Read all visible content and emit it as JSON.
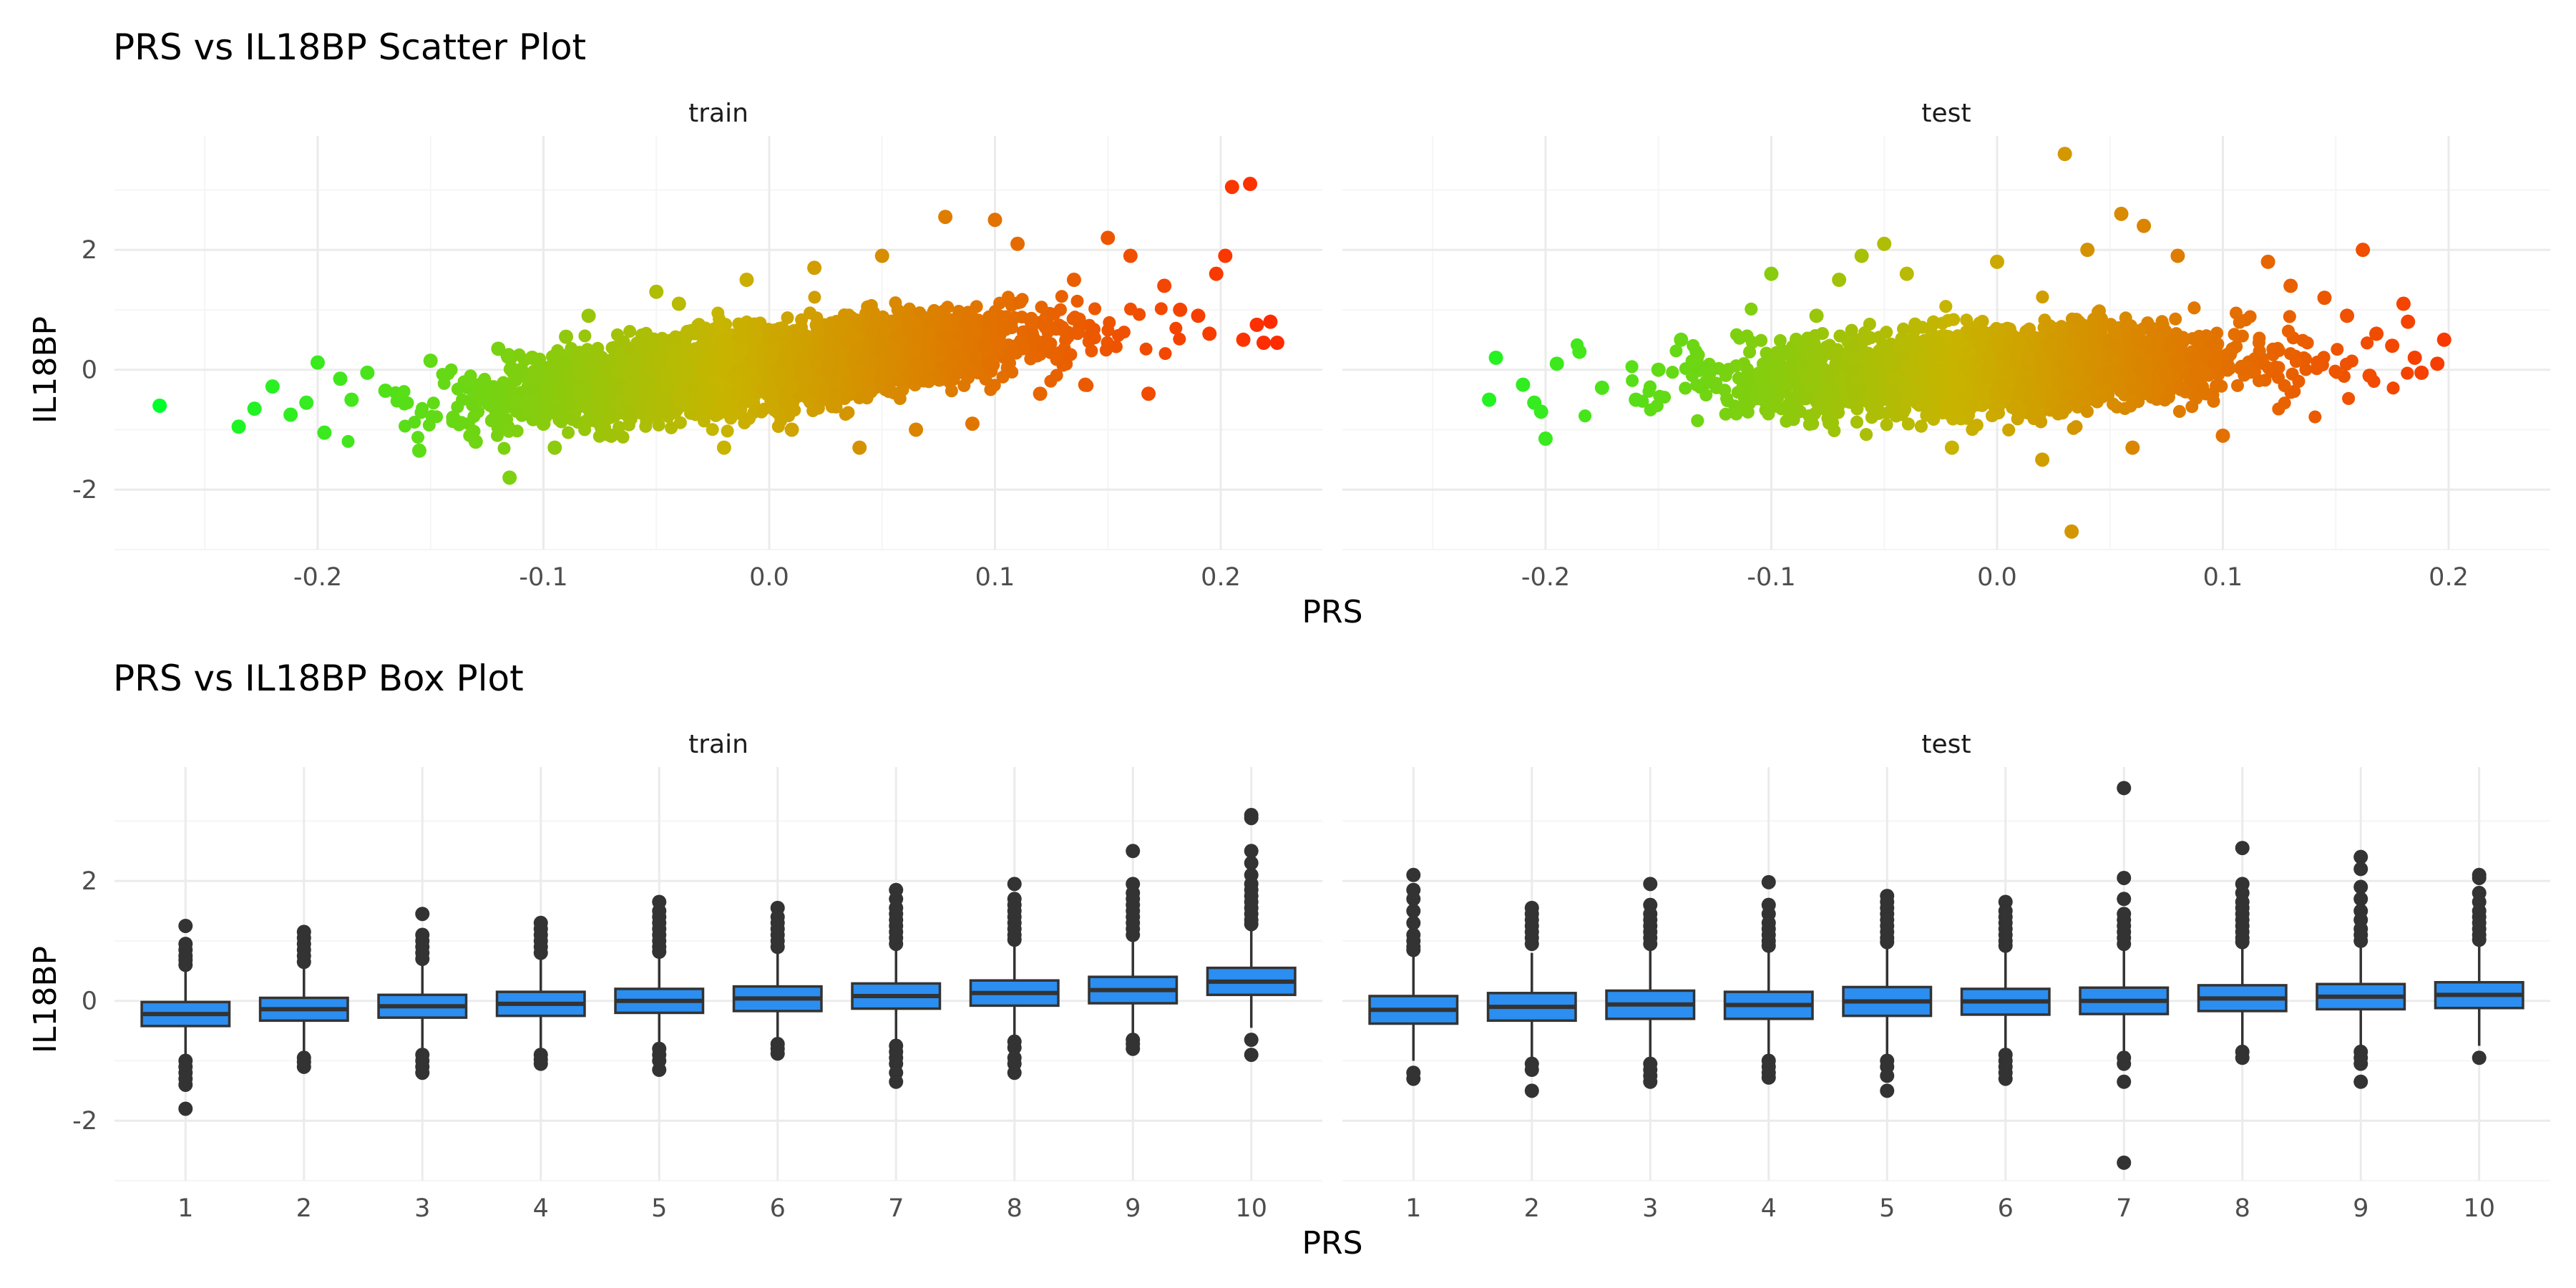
{
  "figure": {
    "background": "#ffffff",
    "gridMajorColor": "#ebebeb",
    "gridMinorColor": "#f5f5f5"
  },
  "chart_data": [
    {
      "type": "scatter",
      "title": "PRS vs IL18BP Scatter Plot",
      "xlabel": "PRS",
      "ylabel": "IL18BP",
      "facets": [
        "train",
        "test"
      ],
      "xlim": [
        -0.29,
        0.245
      ],
      "ylim": [
        -3.0,
        3.9
      ],
      "xticks": [
        -0.2,
        -0.1,
        0.0,
        0.1,
        0.2
      ],
      "xtick_labels": [
        "-0.2",
        "-0.1",
        "0.0",
        "0.1",
        "0.2"
      ],
      "yticks": [
        -2,
        0,
        2
      ],
      "ytick_labels": [
        "-2",
        "0",
        "2"
      ],
      "color_scale": {
        "low": "#00ff2a",
        "mid": "#c8b400",
        "high": "#ff2800",
        "variable": "PRS"
      },
      "series": [
        {
          "name": "train",
          "points": [
            [
              -0.27,
              -0.6
            ],
            [
              -0.235,
              -0.95
            ],
            [
              -0.228,
              -0.65
            ],
            [
              -0.22,
              -0.28
            ],
            [
              -0.212,
              -0.75
            ],
            [
              -0.205,
              -0.55
            ],
            [
              -0.2,
              0.12
            ],
            [
              -0.197,
              -1.05
            ],
            [
              -0.19,
              -0.15
            ],
            [
              -0.185,
              -0.5
            ],
            [
              -0.178,
              -0.05
            ],
            [
              -0.17,
              -0.35
            ],
            [
              -0.155,
              -1.35
            ],
            [
              -0.15,
              0.15
            ],
            [
              -0.14,
              -0.8
            ],
            [
              -0.13,
              -1.2
            ],
            [
              -0.12,
              0.35
            ],
            [
              -0.115,
              -1.8
            ],
            [
              -0.105,
              0.2
            ],
            [
              -0.1,
              -0.9
            ],
            [
              -0.095,
              -1.3
            ],
            [
              -0.09,
              0.55
            ],
            [
              -0.08,
              0.9
            ],
            [
              -0.07,
              -1.1
            ],
            [
              -0.05,
              1.3
            ],
            [
              -0.04,
              1.1
            ],
            [
              -0.02,
              -1.3
            ],
            [
              -0.01,
              1.5
            ],
            [
              0.01,
              -1.0
            ],
            [
              0.02,
              1.7
            ],
            [
              0.04,
              -1.3
            ],
            [
              0.05,
              1.9
            ],
            [
              0.065,
              -1.0
            ],
            [
              0.078,
              2.55
            ],
            [
              0.09,
              -0.9
            ],
            [
              0.1,
              2.5
            ],
            [
              0.11,
              2.1
            ],
            [
              0.12,
              -0.4
            ],
            [
              0.135,
              1.5
            ],
            [
              0.14,
              -0.25
            ],
            [
              0.15,
              2.2
            ],
            [
              0.16,
              1.9
            ],
            [
              0.168,
              -0.4
            ],
            [
              0.175,
              1.4
            ],
            [
              0.182,
              1.0
            ],
            [
              0.19,
              0.9
            ],
            [
              0.195,
              0.6
            ],
            [
              0.198,
              1.6
            ],
            [
              0.202,
              1.9
            ],
            [
              0.205,
              3.05
            ],
            [
              0.21,
              0.5
            ],
            [
              0.213,
              3.1
            ],
            [
              0.216,
              0.75
            ],
            [
              0.219,
              0.45
            ],
            [
              0.222,
              0.8
            ],
            [
              0.225,
              0.45
            ]
          ],
          "trend": {
            "slope": 4.2,
            "intercept": 0.05,
            "spread": 0.3
          }
        },
        {
          "name": "test",
          "points": [
            [
              -0.225,
              -0.5
            ],
            [
              -0.222,
              0.2
            ],
            [
              -0.21,
              -0.25
            ],
            [
              -0.205,
              -0.55
            ],
            [
              -0.202,
              -0.7
            ],
            [
              -0.2,
              -1.15
            ],
            [
              -0.195,
              0.1
            ],
            [
              -0.185,
              0.3
            ],
            [
              -0.175,
              -0.3
            ],
            [
              -0.16,
              -0.5
            ],
            [
              -0.15,
              0.0
            ],
            [
              -0.14,
              0.5
            ],
            [
              -0.1,
              1.6
            ],
            [
              -0.08,
              0.9
            ],
            [
              -0.07,
              1.5
            ],
            [
              -0.06,
              1.9
            ],
            [
              -0.05,
              2.1
            ],
            [
              -0.04,
              1.6
            ],
            [
              -0.02,
              -1.3
            ],
            [
              0.0,
              1.8
            ],
            [
              0.02,
              -1.5
            ],
            [
              0.03,
              3.6
            ],
            [
              0.033,
              -2.7
            ],
            [
              0.04,
              2.0
            ],
            [
              0.055,
              2.6
            ],
            [
              0.065,
              2.4
            ],
            [
              0.06,
              -1.3
            ],
            [
              0.08,
              1.9
            ],
            [
              0.1,
              -1.1
            ],
            [
              0.12,
              1.8
            ],
            [
              0.13,
              1.4
            ],
            [
              0.145,
              1.2
            ],
            [
              0.155,
              0.9
            ],
            [
              0.162,
              2.0
            ],
            [
              0.165,
              -0.1
            ],
            [
              0.168,
              0.6
            ],
            [
              0.175,
              0.4
            ],
            [
              0.18,
              1.1
            ],
            [
              0.182,
              0.8
            ],
            [
              0.185,
              0.2
            ],
            [
              0.188,
              -0.05
            ],
            [
              0.195,
              0.1
            ],
            [
              0.198,
              0.5
            ]
          ],
          "trend": {
            "slope": 1.5,
            "intercept": 0.0,
            "spread": 0.33
          }
        }
      ]
    },
    {
      "type": "box",
      "title": "PRS vs IL18BP Box Plot",
      "xlabel": "PRS",
      "ylabel": "IL18BP",
      "facets": [
        "train",
        "test"
      ],
      "categories": [
        "1",
        "2",
        "3",
        "4",
        "5",
        "6",
        "7",
        "8",
        "9",
        "10"
      ],
      "ylim": [
        -3.0,
        3.9
      ],
      "yticks": [
        -2,
        0,
        2
      ],
      "ytick_labels": [
        "-2",
        "0",
        "2"
      ],
      "box_fill": "#2b8ef0",
      "box_stroke": "#333333",
      "outlier_color": "#333333",
      "series": [
        {
          "name": "train",
          "boxes": [
            {
              "category": "1",
              "q1": -0.42,
              "median": -0.22,
              "q3": -0.02,
              "lower": -0.95,
              "upper": 0.5,
              "outliers": [
                1.25,
                0.95,
                0.85,
                0.75,
                0.68,
                0.6,
                -1.0,
                -1.1,
                -1.2,
                -1.3,
                -1.4,
                -1.8
              ]
            },
            {
              "category": "2",
              "q1": -0.33,
              "median": -0.14,
              "q3": 0.05,
              "lower": -0.85,
              "upper": 0.58,
              "outliers": [
                1.15,
                1.05,
                0.95,
                0.85,
                0.75,
                0.65,
                -0.95,
                -1.02,
                -1.1
              ]
            },
            {
              "category": "3",
              "q1": -0.28,
              "median": -0.09,
              "q3": 0.1,
              "lower": -0.82,
              "upper": 0.62,
              "outliers": [
                1.45,
                1.1,
                1.0,
                0.9,
                0.8,
                0.7,
                -0.9,
                -1.0,
                -1.1,
                -1.2
              ]
            },
            {
              "category": "4",
              "q1": -0.25,
              "median": -0.05,
              "q3": 0.15,
              "lower": -0.8,
              "upper": 0.7,
              "outliers": [
                1.3,
                1.2,
                1.1,
                1.0,
                0.9,
                0.8,
                -0.9,
                -0.98,
                -1.05
              ]
            },
            {
              "category": "5",
              "q1": -0.2,
              "median": 0.0,
              "q3": 0.2,
              "lower": -0.75,
              "upper": 0.75,
              "outliers": [
                1.65,
                1.5,
                1.4,
                1.3,
                1.2,
                1.1,
                1.0,
                0.9,
                0.82,
                -0.8,
                -0.9,
                -1.0,
                -1.15
              ]
            },
            {
              "category": "6",
              "q1": -0.17,
              "median": 0.04,
              "q3": 0.24,
              "lower": -0.68,
              "upper": 0.8,
              "outliers": [
                1.55,
                1.4,
                1.3,
                1.2,
                1.1,
                1.0,
                0.9,
                -0.72,
                -0.8,
                -0.88
              ]
            },
            {
              "category": "7",
              "q1": -0.13,
              "median": 0.08,
              "q3": 0.29,
              "lower": -0.7,
              "upper": 0.88,
              "outliers": [
                1.85,
                1.7,
                1.55,
                1.45,
                1.35,
                1.25,
                1.15,
                1.05,
                0.95,
                -0.75,
                -0.85,
                -0.95,
                -1.05,
                -1.2,
                -1.35
              ]
            },
            {
              "category": "8",
              "q1": -0.08,
              "median": 0.13,
              "q3": 0.34,
              "lower": -0.62,
              "upper": 0.95,
              "outliers": [
                1.95,
                1.7,
                1.6,
                1.5,
                1.4,
                1.3,
                1.2,
                1.1,
                1.02,
                -0.68,
                -0.78,
                -0.95,
                -1.05,
                -1.2
              ]
            },
            {
              "category": "9",
              "q1": -0.04,
              "median": 0.18,
              "q3": 0.4,
              "lower": -0.58,
              "upper": 1.0,
              "outliers": [
                2.5,
                1.95,
                1.8,
                1.7,
                1.6,
                1.5,
                1.4,
                1.3,
                1.2,
                1.1,
                -0.65,
                -0.72,
                -0.8
              ]
            },
            {
              "category": "10",
              "q1": 0.1,
              "median": 0.32,
              "q3": 0.55,
              "lower": -0.45,
              "upper": 1.2,
              "outliers": [
                3.1,
                3.05,
                2.5,
                2.3,
                2.1,
                1.95,
                1.85,
                1.75,
                1.65,
                1.55,
                1.45,
                1.35,
                1.28,
                -0.65,
                -0.9
              ]
            }
          ]
        },
        {
          "name": "test",
          "boxes": [
            {
              "category": "1",
              "q1": -0.38,
              "median": -0.15,
              "q3": 0.08,
              "lower": -1.0,
              "upper": 0.75,
              "outliers": [
                2.1,
                1.85,
                1.7,
                1.5,
                1.3,
                1.1,
                1.0,
                0.9,
                0.85,
                -1.2,
                -1.3
              ]
            },
            {
              "category": "2",
              "q1": -0.33,
              "median": -0.1,
              "q3": 0.13,
              "lower": -0.98,
              "upper": 0.8,
              "outliers": [
                1.55,
                1.45,
                1.35,
                1.25,
                1.15,
                1.05,
                0.95,
                -1.05,
                -1.15,
                -1.5
              ]
            },
            {
              "category": "3",
              "q1": -0.3,
              "median": -0.06,
              "q3": 0.17,
              "lower": -0.95,
              "upper": 0.85,
              "outliers": [
                1.95,
                1.6,
                1.45,
                1.35,
                1.25,
                1.15,
                1.05,
                0.95,
                -1.05,
                -1.15,
                -1.25,
                -1.35
              ]
            },
            {
              "category": "4",
              "q1": -0.3,
              "median": -0.07,
              "q3": 0.15,
              "lower": -0.95,
              "upper": 0.82,
              "outliers": [
                1.98,
                1.6,
                1.45,
                1.3,
                1.2,
                1.1,
                1.0,
                0.92,
                -1.0,
                -1.1,
                -1.2,
                -1.28
              ]
            },
            {
              "category": "5",
              "q1": -0.25,
              "median": -0.01,
              "q3": 0.23,
              "lower": -0.9,
              "upper": 0.9,
              "outliers": [
                1.75,
                1.65,
                1.55,
                1.45,
                1.35,
                1.25,
                1.15,
                1.05,
                0.98,
                -1.0,
                -1.1,
                -1.25,
                -1.5
              ]
            },
            {
              "category": "6",
              "q1": -0.23,
              "median": -0.01,
              "q3": 0.2,
              "lower": -0.85,
              "upper": 0.85,
              "outliers": [
                1.65,
                1.5,
                1.4,
                1.3,
                1.2,
                1.1,
                1.0,
                0.92,
                -0.9,
                -1.0,
                -1.1,
                -1.2,
                -1.3
              ]
            },
            {
              "category": "7",
              "q1": -0.22,
              "median": 0.0,
              "q3": 0.22,
              "lower": -0.85,
              "upper": 0.88,
              "outliers": [
                3.55,
                2.05,
                1.7,
                1.45,
                1.35,
                1.25,
                1.15,
                1.05,
                0.95,
                -0.95,
                -1.05,
                -1.35,
                -2.7
              ]
            },
            {
              "category": "8",
              "q1": -0.17,
              "median": 0.04,
              "q3": 0.26,
              "lower": -0.8,
              "upper": 0.9,
              "outliers": [
                2.55,
                1.95,
                1.8,
                1.65,
                1.55,
                1.45,
                1.35,
                1.25,
                1.15,
                1.05,
                0.98,
                -0.85,
                -0.95
              ]
            },
            {
              "category": "9",
              "q1": -0.14,
              "median": 0.07,
              "q3": 0.28,
              "lower": -0.75,
              "upper": 0.9,
              "outliers": [
                2.4,
                2.2,
                1.9,
                1.7,
                1.5,
                1.35,
                1.2,
                1.1,
                1.0,
                -0.85,
                -0.95,
                -1.05,
                -1.35
              ]
            },
            {
              "category": "10",
              "q1": -0.12,
              "median": 0.1,
              "q3": 0.31,
              "lower": -0.75,
              "upper": 0.95,
              "outliers": [
                2.1,
                2.05,
                1.8,
                1.65,
                1.5,
                1.4,
                1.3,
                1.2,
                1.1,
                1.02,
                -0.95
              ]
            }
          ]
        }
      ]
    }
  ]
}
